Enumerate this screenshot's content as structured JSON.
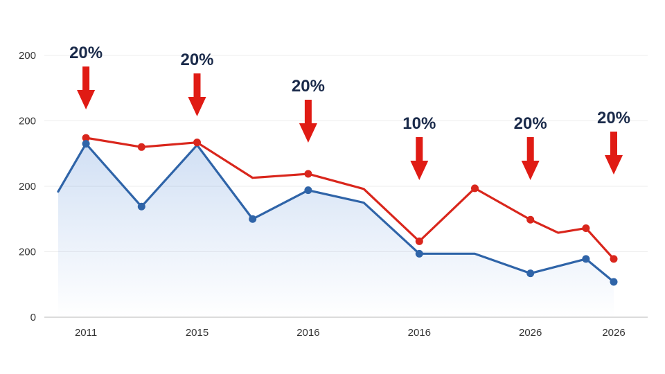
{
  "chart_data": {
    "type": "line",
    "title": "",
    "xlabel": "",
    "ylabel": "",
    "grid": true,
    "y_ticks": [
      "0",
      "200",
      "200",
      "200",
      "200"
    ],
    "x_ticks": [
      "2011",
      "2015",
      "2016",
      "2016",
      "2026",
      "2026"
    ],
    "ylim": [
      0,
      400
    ],
    "x": [
      0,
      1,
      2,
      3,
      4,
      5,
      6,
      7,
      8,
      9,
      10,
      11,
      12,
      13,
      14,
      15,
      16,
      17,
      18,
      19,
      20
    ],
    "series": [
      {
        "name": "red",
        "color": "#d9261c",
        "values": [
          null,
          274,
          null,
          260,
          null,
          267,
          null,
          213,
          null,
          219,
          null,
          196,
          null,
          116,
          null,
          197,
          null,
          149,
          129,
          136,
          89
        ],
        "markers": [
          1,
          3,
          5,
          9,
          13,
          15,
          17,
          19,
          20
        ]
      },
      {
        "name": "blue",
        "color": "#2f64a8",
        "values": [
          192,
          265,
          null,
          169,
          null,
          263,
          null,
          150,
          null,
          194,
          null,
          175,
          null,
          97,
          null,
          97,
          null,
          67,
          null,
          89,
          54
        ],
        "markers": [
          1,
          3,
          7,
          9,
          13,
          17,
          19,
          20
        ]
      }
    ],
    "annotations": [
      {
        "label": "20%",
        "x": 1
      },
      {
        "label": "20%",
        "x": 5
      },
      {
        "label": "20%",
        "x": 9
      },
      {
        "label": "10%",
        "x": 13
      },
      {
        "label": "20%",
        "x": 17
      },
      {
        "label": "20%",
        "x": 20
      }
    ]
  }
}
